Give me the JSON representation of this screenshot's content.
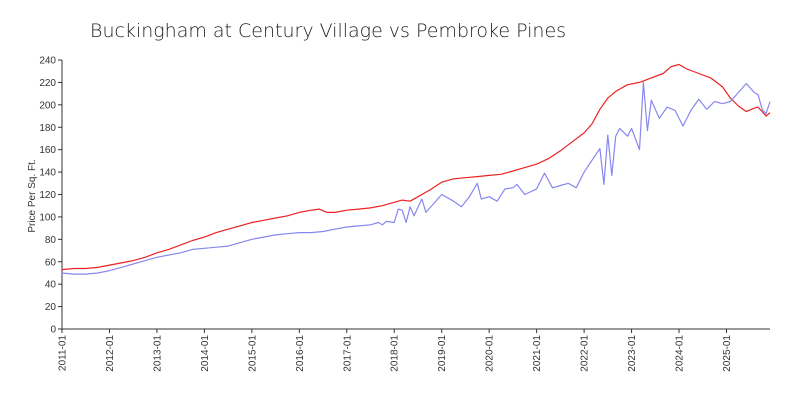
{
  "chart_data": {
    "type": "line",
    "title": "Buckingham at Century Village vs Pembroke Pines",
    "xlabel": "",
    "ylabel": "Price Per Sq. Ft.",
    "ylim": [
      0,
      240
    ],
    "yticks": [
      0,
      20,
      40,
      60,
      80,
      100,
      120,
      140,
      160,
      180,
      200,
      220,
      240
    ],
    "xlim": [
      "2011-01",
      "2025-12"
    ],
    "xticks": [
      "2011-01",
      "2012-01",
      "2013-01",
      "2014-01",
      "2015-01",
      "2016-01",
      "2017-01",
      "2018-01",
      "2019-01",
      "2020-01",
      "2021-01",
      "2022-01",
      "2023-01",
      "2024-01",
      "2025-01"
    ],
    "legend": "none",
    "grid": false,
    "series": [
      {
        "color": "#ee2222",
        "points": [
          [
            "2011-01",
            53
          ],
          [
            "2011-04",
            54
          ],
          [
            "2011-07",
            54
          ],
          [
            "2011-10",
            55
          ],
          [
            "2012-01",
            57
          ],
          [
            "2012-04",
            59
          ],
          [
            "2012-07",
            61
          ],
          [
            "2012-10",
            64
          ],
          [
            "2013-01",
            68
          ],
          [
            "2013-04",
            71
          ],
          [
            "2013-07",
            75
          ],
          [
            "2013-10",
            79
          ],
          [
            "2014-01",
            82
          ],
          [
            "2014-04",
            86
          ],
          [
            "2014-07",
            89
          ],
          [
            "2014-10",
            92
          ],
          [
            "2015-01",
            95
          ],
          [
            "2015-04",
            97
          ],
          [
            "2015-07",
            99
          ],
          [
            "2015-10",
            101
          ],
          [
            "2016-01",
            104
          ],
          [
            "2016-04",
            106
          ],
          [
            "2016-06",
            107
          ],
          [
            "2016-08",
            104
          ],
          [
            "2016-10",
            104
          ],
          [
            "2017-01",
            106
          ],
          [
            "2017-04",
            107
          ],
          [
            "2017-07",
            108
          ],
          [
            "2017-10",
            110
          ],
          [
            "2018-01",
            113
          ],
          [
            "2018-03",
            115
          ],
          [
            "2018-05",
            114
          ],
          [
            "2018-07",
            118
          ],
          [
            "2018-10",
            124
          ],
          [
            "2019-01",
            131
          ],
          [
            "2019-04",
            134
          ],
          [
            "2019-07",
            135
          ],
          [
            "2019-10",
            136
          ],
          [
            "2020-01",
            137
          ],
          [
            "2020-04",
            138
          ],
          [
            "2020-07",
            141
          ],
          [
            "2020-10",
            144
          ],
          [
            "2021-01",
            147
          ],
          [
            "2021-04",
            152
          ],
          [
            "2021-07",
            159
          ],
          [
            "2021-10",
            167
          ],
          [
            "2022-01",
            175
          ],
          [
            "2022-03",
            183
          ],
          [
            "2022-05",
            196
          ],
          [
            "2022-07",
            206
          ],
          [
            "2022-09",
            212
          ],
          [
            "2022-12",
            218
          ],
          [
            "2023-03",
            220
          ],
          [
            "2023-06",
            224
          ],
          [
            "2023-09",
            228
          ],
          [
            "2023-11",
            234
          ],
          [
            "2024-01",
            236
          ],
          [
            "2024-03",
            232
          ],
          [
            "2024-06",
            228
          ],
          [
            "2024-09",
            224
          ],
          [
            "2024-12",
            216
          ],
          [
            "2025-02",
            206
          ],
          [
            "2025-04",
            199
          ],
          [
            "2025-06",
            194
          ],
          [
            "2025-08",
            197
          ],
          [
            "2025-09",
            198
          ],
          [
            "2025-10",
            194
          ],
          [
            "2025-11",
            190
          ],
          [
            "2025-12",
            193
          ]
        ]
      },
      {
        "color": "#8888ee",
        "points": [
          [
            "2011-01",
            50
          ],
          [
            "2011-04",
            49
          ],
          [
            "2011-07",
            49
          ],
          [
            "2011-10",
            50
          ],
          [
            "2012-01",
            52
          ],
          [
            "2012-04",
            55
          ],
          [
            "2012-07",
            58
          ],
          [
            "2012-10",
            61
          ],
          [
            "2013-01",
            64
          ],
          [
            "2013-04",
            66
          ],
          [
            "2013-07",
            68
          ],
          [
            "2013-10",
            71
          ],
          [
            "2014-01",
            72
          ],
          [
            "2014-04",
            73
          ],
          [
            "2014-07",
            74
          ],
          [
            "2014-10",
            77
          ],
          [
            "2015-01",
            80
          ],
          [
            "2015-04",
            82
          ],
          [
            "2015-07",
            84
          ],
          [
            "2015-10",
            85
          ],
          [
            "2016-01",
            86
          ],
          [
            "2016-04",
            86
          ],
          [
            "2016-07",
            87
          ],
          [
            "2016-10",
            89
          ],
          [
            "2017-01",
            91
          ],
          [
            "2017-04",
            92
          ],
          [
            "2017-07",
            93
          ],
          [
            "2017-09",
            95
          ],
          [
            "2017-10",
            93
          ],
          [
            "2017-11",
            96
          ],
          [
            "2018-01",
            95
          ],
          [
            "2018-02",
            107
          ],
          [
            "2018-03",
            106
          ],
          [
            "2018-04",
            95
          ],
          [
            "2018-05",
            109
          ],
          [
            "2018-06",
            101
          ],
          [
            "2018-08",
            116
          ],
          [
            "2018-09",
            104
          ],
          [
            "2018-11",
            112
          ],
          [
            "2019-01",
            120
          ],
          [
            "2019-04",
            114
          ],
          [
            "2019-06",
            109
          ],
          [
            "2019-08",
            118
          ],
          [
            "2019-10",
            130
          ],
          [
            "2019-11",
            116
          ],
          [
            "2020-01",
            118
          ],
          [
            "2020-03",
            114
          ],
          [
            "2020-05",
            125
          ],
          [
            "2020-07",
            126
          ],
          [
            "2020-08",
            129
          ],
          [
            "2020-10",
            120
          ],
          [
            "2021-01",
            125
          ],
          [
            "2021-03",
            139
          ],
          [
            "2021-05",
            126
          ],
          [
            "2021-07",
            128
          ],
          [
            "2021-09",
            130
          ],
          [
            "2021-11",
            126
          ],
          [
            "2022-01",
            140
          ],
          [
            "2022-05",
            161
          ],
          [
            "2022-06",
            129
          ],
          [
            "2022-07",
            173
          ],
          [
            "2022-08",
            137
          ],
          [
            "2022-09",
            172
          ],
          [
            "2022-10",
            179
          ],
          [
            "2022-12",
            172
          ],
          [
            "2023-01",
            179
          ],
          [
            "2023-03",
            160
          ],
          [
            "2023-04",
            220
          ],
          [
            "2023-05",
            177
          ],
          [
            "2023-06",
            204
          ],
          [
            "2023-08",
            188
          ],
          [
            "2023-10",
            198
          ],
          [
            "2023-12",
            195
          ],
          [
            "2024-02",
            181
          ],
          [
            "2024-04",
            195
          ],
          [
            "2024-06",
            205
          ],
          [
            "2024-08",
            196
          ],
          [
            "2024-10",
            203
          ],
          [
            "2024-12",
            201
          ],
          [
            "2025-02",
            203
          ],
          [
            "2025-04",
            211
          ],
          [
            "2025-06",
            219
          ],
          [
            "2025-08",
            211
          ],
          [
            "2025-09",
            209
          ],
          [
            "2025-10",
            196
          ],
          [
            "2025-11",
            192
          ],
          [
            "2025-12",
            203
          ]
        ]
      }
    ]
  }
}
